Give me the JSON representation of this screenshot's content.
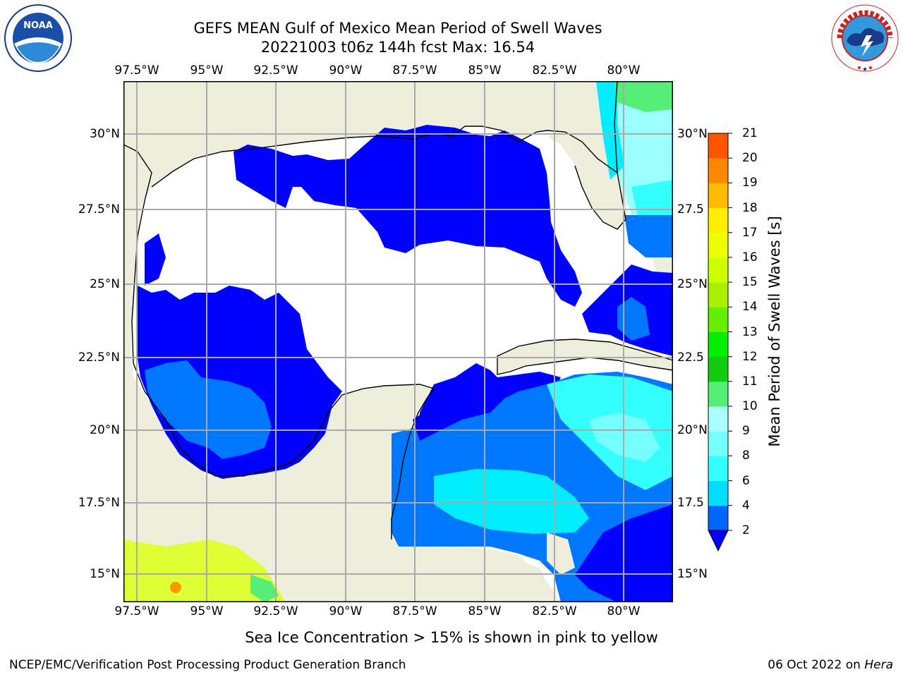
{
  "title_line1": "GEFS MEAN Gulf of Mexico Mean Period of Swell Waves",
  "title_line2": "20221003 t06z 144h fcst   Max: 16.54",
  "lon_labels": [
    "97.5°W",
    "95°W",
    "92.5°W",
    "90°W",
    "87.5°W",
    "85°W",
    "82.5°W",
    "80°W"
  ],
  "lat_labels_left": [
    "30°N",
    "27.5°N",
    "25°N",
    "22.5°N",
    "20°N",
    "17.5°N",
    "15°N"
  ],
  "lat_labels_right": [
    "30°N",
    "27.5",
    "25°N",
    "22.5",
    "20°N",
    "17.5",
    "15°N"
  ],
  "colorbar": {
    "label": "Mean Period of Swell Waves [s]",
    "ticks": [
      "2",
      "4",
      "6",
      "8",
      "9",
      "10",
      "11",
      "12",
      "13",
      "14",
      "15",
      "16",
      "17",
      "18",
      "19",
      "20",
      "21"
    ],
    "colors": [
      "#0066ff",
      "#00ddff",
      "#33ffff",
      "#77ffff",
      "#aaffff",
      "#55ee77",
      "#11cc11",
      "#00ee00",
      "#66ee00",
      "#aaee00",
      "#ccff00",
      "#eeff00",
      "#ffee00",
      "#ffbb00",
      "#ff8800",
      "#ff5500",
      "#ff2200",
      "#ff0000"
    ],
    "extend_color": "#0000ff"
  },
  "map_colors": {
    "land": "#eeeedd",
    "period_2_or_less": "#0000ff",
    "period_2_4": "#0077ff",
    "period_4_6": "#00eeff",
    "period_6_8": "#66ffff",
    "period_8_9": "#99ffff",
    "period_9_10": "#55ee77",
    "pacific_low": "#ddff33",
    "pacific_high": "#ff9900",
    "grid": "#aaaaaa"
  },
  "note": "Sea Ice Concentration > 15% is shown in pink to yellow",
  "footer_left": "NCEP/EMC/Verification Post Processing Product Generation Branch",
  "footer_date": "06 Oct 2022 on ",
  "footer_host": "Hera",
  "logos": {
    "left": "NOAA",
    "right_text": "NATIONAL WEATHER SERVICE"
  }
}
